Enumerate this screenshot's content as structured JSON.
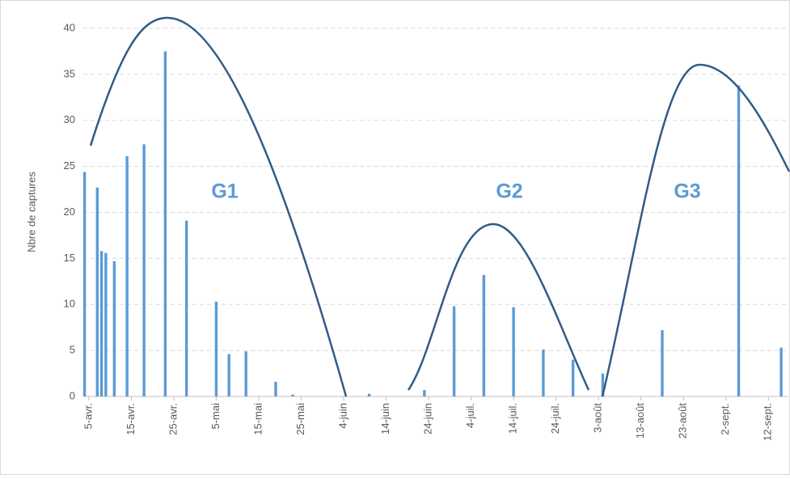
{
  "chart_data": {
    "type": "bar",
    "y_label": "Nbre de captures",
    "color": "#5b9bd5",
    "x": [
      -1,
      2,
      3,
      4,
      6,
      9,
      13,
      18,
      23,
      30,
      33,
      37,
      44,
      48,
      66,
      79,
      86,
      93,
      100,
      107,
      114,
      121,
      135,
      153,
      163
    ],
    "values": [
      24.4,
      22.7,
      15.8,
      15.6,
      14.7,
      26.1,
      27.4,
      37.5,
      19.1,
      10.3,
      4.6,
      4.9,
      1.6,
      0.2,
      0.3,
      0.7,
      9.8,
      13.2,
      9.7,
      5.1,
      4.0,
      2.5,
      7.2,
      33.8,
      5.3
    ],
    "xlim": [
      -1.3,
      164.7
    ],
    "xticks": [
      {
        "value": 0,
        "label": "5-avr."
      },
      {
        "value": 10,
        "label": "15-avr."
      },
      {
        "value": 20,
        "label": "25-avr."
      },
      {
        "value": 30,
        "label": "5-mai"
      },
      {
        "value": 40,
        "label": "15-mai"
      },
      {
        "value": 50,
        "label": "25-mai"
      },
      {
        "value": 60,
        "label": "4-juin"
      },
      {
        "value": 70,
        "label": "14-juin"
      },
      {
        "value": 80,
        "label": "24-juin"
      },
      {
        "value": 90,
        "label": "4-juil."
      },
      {
        "value": 100,
        "label": "14-juil."
      },
      {
        "value": 110,
        "label": "24-juil."
      },
      {
        "value": 120,
        "label": "3-août"
      },
      {
        "value": 130,
        "label": "13-août"
      },
      {
        "value": 140,
        "label": "23-août"
      },
      {
        "value": 150,
        "label": "2-sept."
      },
      {
        "value": 160,
        "label": "12-sept."
      }
    ],
    "ylim": [
      0,
      40
    ],
    "yticks": [
      0,
      5,
      10,
      15,
      20,
      25,
      30,
      35,
      40
    ],
    "grid": true,
    "annotations": [
      "G1",
      "G2",
      "G3"
    ]
  }
}
